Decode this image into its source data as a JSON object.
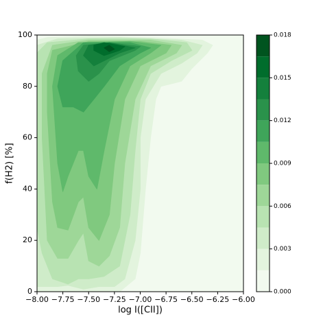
{
  "chart_data": {
    "type": "contour",
    "xlabel": "log I([CII])",
    "ylabel": "f(H2) [%]",
    "xlim": [
      -8,
      -6
    ],
    "ylim": [
      0,
      100
    ],
    "xticks": [
      {
        "value": -8,
        "label": "−8.00"
      },
      {
        "value": -7.75,
        "label": "−7.75"
      },
      {
        "value": -7.5,
        "label": "−7.50"
      },
      {
        "value": -7.25,
        "label": "−7.25"
      },
      {
        "value": -7,
        "label": "−7.00"
      },
      {
        "value": -6.75,
        "label": "−6.75"
      },
      {
        "value": -6.5,
        "label": "−6.50"
      },
      {
        "value": -6.25,
        "label": "−6.25"
      },
      {
        "value": -6,
        "label": "−6.00"
      }
    ],
    "yticks": [
      0,
      20,
      40,
      60,
      80,
      100
    ],
    "colorbar": {
      "levels": [
        0,
        0.0015,
        0.003,
        0.0045,
        0.006,
        0.0075,
        0.009,
        0.0105,
        0.012,
        0.0135,
        0.015,
        0.0165,
        0.018
      ],
      "colors": [
        "#f2faef",
        "#e3f4de",
        "#cfecc9",
        "#b8e3b2",
        "#9ed798",
        "#80c97f",
        "#5fb96b",
        "#3fa55a",
        "#2a924b",
        "#14803c",
        "#006d2c",
        "#00541f"
      ],
      "ticks": [
        {
          "value": 0,
          "label": "0.000"
        },
        {
          "value": 0.003,
          "label": "0.003"
        },
        {
          "value": 0.006,
          "label": "0.006"
        },
        {
          "value": 0.009,
          "label": "0.009"
        },
        {
          "value": 0.012,
          "label": "0.012"
        },
        {
          "value": 0.015,
          "label": "0.015"
        },
        {
          "value": 0.018,
          "label": "0.018"
        }
      ]
    },
    "contours": [
      {
        "level": 0.0015,
        "x": [
          -8,
          -7.2,
          -7.05,
          -7.0,
          -6.95,
          -6.9,
          -6.85,
          -6.8,
          -6.6,
          -6.5,
          -6.35,
          -6.3,
          -6.4,
          -6.9,
          -7.5,
          -7.9,
          -8
        ],
        "y": [
          0,
          0,
          5,
          15,
          40,
          60,
          75,
          80,
          82,
          87,
          93,
          96,
          98,
          99,
          99.5,
          99,
          98
        ]
      },
      {
        "level": 0.003,
        "x": [
          -8,
          -7.8,
          -7.7,
          -7.55,
          -7.4,
          -7.25,
          -7.15,
          -7.05,
          -7.0,
          -7.0,
          -6.95,
          -6.8,
          -6.6,
          -6.45,
          -6.4,
          -6.6,
          -7.2,
          -7.8,
          -8
        ],
        "y": [
          2,
          2,
          2.5,
          1,
          2,
          2,
          5,
          20,
          40,
          60,
          75,
          85,
          89,
          93,
          96,
          98,
          99,
          98.5,
          96
        ]
      },
      {
        "level": 0.0045,
        "x": [
          -8,
          -7.95,
          -7.85,
          -7.7,
          -7.6,
          -7.5,
          -7.35,
          -7.2,
          -7.1,
          -7.05,
          -7.0,
          -6.9,
          -6.7,
          -6.5,
          -6.55,
          -6.9,
          -7.5,
          -7.9,
          -8
        ],
        "y": [
          25,
          15,
          5,
          3,
          5,
          5,
          6,
          10,
          30,
          55,
          75,
          85,
          90,
          94,
          97,
          98.5,
          98.5,
          97,
          93
        ]
      },
      {
        "level": 0.006,
        "x": [
          -7.95,
          -7.9,
          -7.8,
          -7.7,
          -7.6,
          -7.55,
          -7.5,
          -7.4,
          -7.3,
          -7.2,
          -7.15,
          -7.05,
          -6.9,
          -6.65,
          -6.6,
          -6.9,
          -7.5,
          -7.85,
          -7.95
        ],
        "y": [
          60,
          20,
          13,
          13,
          20,
          23,
          12,
          10,
          14,
          25,
          50,
          75,
          88,
          93,
          96,
          98,
          98,
          96,
          85
        ]
      },
      {
        "level": 0.0075,
        "x": [
          -7.9,
          -7.85,
          -7.8,
          -7.7,
          -7.6,
          -7.55,
          -7.5,
          -7.4,
          -7.3,
          -7.25,
          -7.15,
          -7.0,
          -6.75,
          -6.7,
          -7.0,
          -7.5,
          -7.85,
          -7.9
        ],
        "y": [
          70,
          35,
          25,
          24,
          35,
          37,
          25,
          20,
          30,
          50,
          75,
          88,
          93,
          96,
          97.5,
          97.5,
          94,
          85
        ]
      },
      {
        "level": 0.009,
        "x": [
          -7.85,
          -7.8,
          -7.75,
          -7.7,
          -7.6,
          -7.55,
          -7.5,
          -7.42,
          -7.35,
          -7.25,
          -7.1,
          -6.9,
          -6.8,
          -7.1,
          -7.6,
          -7.8
        ],
        "y": [
          80,
          50,
          39,
          45,
          55,
          55,
          45,
          40,
          55,
          75,
          88,
          93,
          96,
          97.5,
          97,
          92
        ]
      },
      {
        "level": 0.0105,
        "x": [
          -7.8,
          -7.75,
          -7.65,
          -7.55,
          -7.45,
          -7.35,
          -7.2,
          -7.0,
          -6.9,
          -7.1,
          -7.55,
          -7.75
        ],
        "y": [
          80,
          72,
          72,
          70,
          75,
          80,
          88,
          93,
          95,
          97,
          97,
          90
        ]
      },
      {
        "level": 0.012,
        "x": [
          -7.6,
          -7.5,
          -7.4,
          -7.3,
          -7.05,
          -7.0,
          -7.3,
          -7.55,
          -7.62
        ],
        "y": [
          86,
          82,
          85,
          90,
          94,
          95.5,
          97,
          96,
          92
        ]
      },
      {
        "level": 0.0135,
        "x": [
          -7.55,
          -7.45,
          -7.35,
          -7.2,
          -7.05,
          -7.3,
          -7.5
        ],
        "y": [
          92,
          88,
          90,
          93,
          95,
          97,
          96
        ]
      },
      {
        "level": 0.015,
        "x": [
          -7.45,
          -7.35,
          -7.2,
          -7.15,
          -7.35,
          -7.45
        ],
        "y": [
          94,
          92,
          94,
          95.5,
          97,
          96
        ]
      },
      {
        "level": 0.0165,
        "x": [
          -7.35,
          -7.3,
          -7.25,
          -7.3
        ],
        "y": [
          95,
          93.5,
          94.5,
          96
        ]
      }
    ]
  }
}
